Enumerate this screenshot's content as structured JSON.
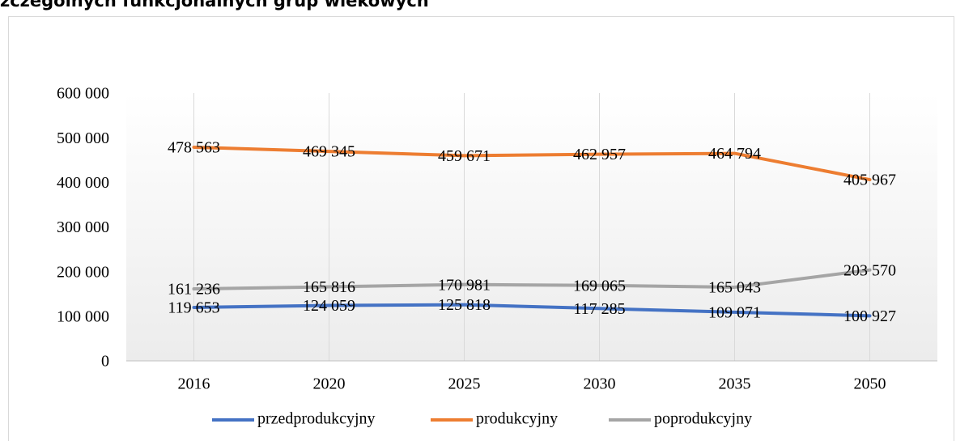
{
  "chart_data": {
    "type": "line",
    "title": "zczególnych funkcjonalnych grup wiekowych",
    "categories": [
      "2016",
      "2020",
      "2025",
      "2030",
      "2035",
      "2050"
    ],
    "series": [
      {
        "name": "przedprodukcyjny",
        "color": "#4472c4",
        "values": [
          119653,
          124059,
          125818,
          117285,
          109071,
          100927
        ],
        "value_labels": [
          "119 653",
          "124 059",
          "125 818",
          "117 285",
          "109 071",
          "100 927"
        ]
      },
      {
        "name": "produkcyjny",
        "color": "#ed7d31",
        "values": [
          478563,
          469345,
          459671,
          462957,
          464794,
          405967
        ],
        "value_labels": [
          "478 563",
          "469 345",
          "459 671",
          "462 957",
          "464 794",
          "405 967"
        ]
      },
      {
        "name": "poprodukcyjny",
        "color": "#a5a5a5",
        "values": [
          161236,
          165816,
          170981,
          169065,
          165043,
          203570
        ],
        "value_labels": [
          "161 236",
          "165 816",
          "170 981",
          "169 065",
          "165 043",
          "203 570"
        ]
      }
    ],
    "ylim": [
      0,
      600000
    ],
    "yticks": [
      0,
      {
        "value": 100000,
        "label": "100 000"
      },
      {
        "value": 200000,
        "label": "200 000"
      },
      {
        "value": 300000,
        "label": "300 000"
      },
      {
        "value": 400000,
        "label": "400 000"
      },
      {
        "value": 500000,
        "label": "500 000"
      },
      {
        "value": 600000,
        "label": "600 000"
      }
    ],
    "grid": "x",
    "legend": "bottom"
  }
}
